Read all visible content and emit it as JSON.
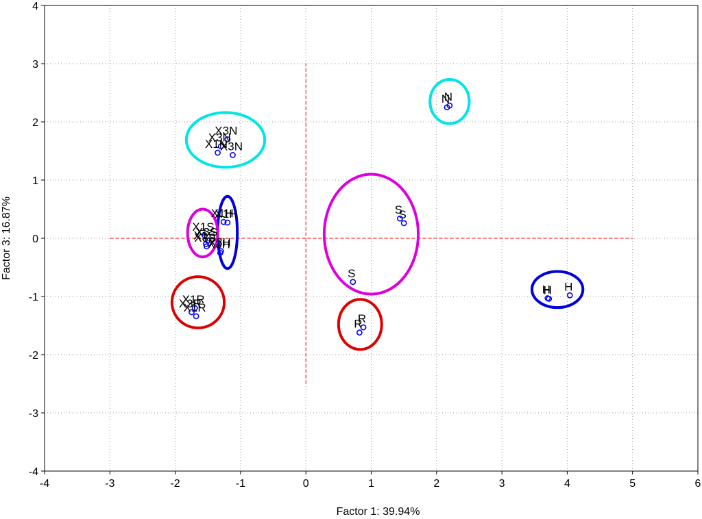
{
  "chart_data": {
    "type": "scatter",
    "title": "",
    "xlabel": "Factor 1: 39.94%",
    "ylabel": "Factor 3: 16.87%",
    "xlim": [
      -4,
      6
    ],
    "ylim": [
      -4,
      4
    ],
    "xticks": [
      "-4",
      "-3",
      "-2",
      "-1",
      "0",
      "1",
      "2",
      "3",
      "4",
      "5",
      "6"
    ],
    "yticks": [
      "-4",
      "-3",
      "-2",
      "-1",
      "0",
      "1",
      "2",
      "3",
      "4"
    ],
    "grid": "dotted",
    "marker_color": "#0000ff",
    "reference_lines": {
      "color": "#ff0000",
      "style": "dashed",
      "horizontal": {
        "y": 0,
        "x_from": -3,
        "x_to": 5
      },
      "vertical": {
        "x": 0,
        "y_from": -2.5,
        "y_to": 3
      }
    },
    "points": [
      {
        "label": "X3N",
        "x": -1.3,
        "y": 1.58
      },
      {
        "label": "X1N",
        "x": -1.35,
        "y": 1.47
      },
      {
        "label": "X3N",
        "x": -1.2,
        "y": 1.7
      },
      {
        "label": "X3N",
        "x": -1.12,
        "y": 1.43
      },
      {
        "label": "N",
        "x": 2.16,
        "y": 2.25
      },
      {
        "label": "N",
        "x": 2.2,
        "y": 2.28
      },
      {
        "label": "X1H",
        "x": -1.26,
        "y": 0.28
      },
      {
        "label": "X1H",
        "x": -1.2,
        "y": 0.27
      },
      {
        "label": "X3H",
        "x": -1.3,
        "y": -0.22
      },
      {
        "label": "X3H",
        "x": -1.31,
        "y": -0.25
      },
      {
        "label": "X1S",
        "x": -1.55,
        "y": 0.05
      },
      {
        "label": "X3S",
        "x": -1.5,
        "y": -0.04
      },
      {
        "label": "X1S",
        "x": -1.53,
        "y": -0.1
      },
      {
        "label": "X3S",
        "x": -1.52,
        "y": -0.14
      },
      {
        "label": "S",
        "x": 1.44,
        "y": 0.34
      },
      {
        "label": "S",
        "x": 1.5,
        "y": 0.26
      },
      {
        "label": "S",
        "x": 0.72,
        "y": -0.75
      },
      {
        "label": "X1R",
        "x": -1.7,
        "y": -1.2
      },
      {
        "label": "X3R",
        "x": -1.75,
        "y": -1.27
      },
      {
        "label": "X1R",
        "x": -1.68,
        "y": -1.34
      },
      {
        "label": "R",
        "x": 0.88,
        "y": -1.53
      },
      {
        "label": "R",
        "x": 0.82,
        "y": -1.62
      },
      {
        "label": "H",
        "x": 3.7,
        "y": -1.03
      },
      {
        "label": "H",
        "x": 3.72,
        "y": -1.04
      },
      {
        "label": "H",
        "x": 4.04,
        "y": -0.98
      }
    ],
    "ellipses": [
      {
        "group": "N-cluster-left",
        "color": "#00e5e5",
        "cx": -1.23,
        "cy": 1.69,
        "rx": 0.6,
        "ry": 0.47
      },
      {
        "group": "N-cluster-right",
        "color": "#00e5e5",
        "cx": 2.2,
        "cy": 2.35,
        "rx": 0.3,
        "ry": 0.38
      },
      {
        "group": "H-cluster-left",
        "color": "#0000dd",
        "cx": -1.2,
        "cy": 0.1,
        "rx": 0.15,
        "ry": 0.62
      },
      {
        "group": "S-cluster-left",
        "color": "#dd00dd",
        "cx": -1.58,
        "cy": 0.09,
        "rx": 0.23,
        "ry": 0.41
      },
      {
        "group": "S-cluster-right",
        "color": "#dd00dd",
        "cx": 1.0,
        "cy": 0.07,
        "rx": 0.72,
        "ry": 1.03
      },
      {
        "group": "R-cluster-left",
        "color": "#dd0000",
        "cx": -1.65,
        "cy": -1.1,
        "rx": 0.4,
        "ry": 0.44
      },
      {
        "group": "R-cluster-right",
        "color": "#dd0000",
        "cx": 0.83,
        "cy": -1.48,
        "rx": 0.33,
        "ry": 0.43
      },
      {
        "group": "H-cluster-right",
        "color": "#0000dd",
        "cx": 3.85,
        "cy": -0.88,
        "rx": 0.39,
        "ry": 0.31
      }
    ]
  }
}
